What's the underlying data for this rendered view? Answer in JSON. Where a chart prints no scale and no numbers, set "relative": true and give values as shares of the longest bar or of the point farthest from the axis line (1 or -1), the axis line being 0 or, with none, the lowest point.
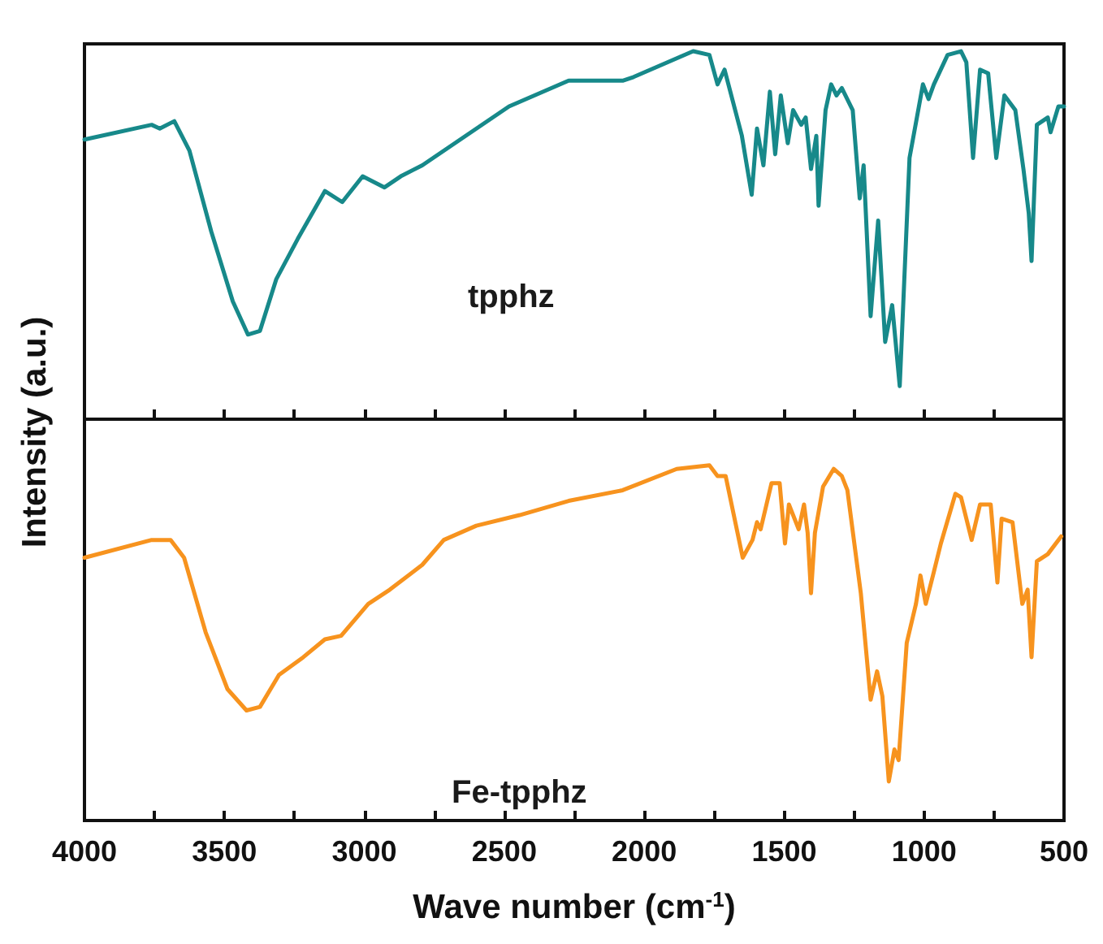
{
  "chart_data": [
    {
      "type": "line",
      "relative": true,
      "xlim": [
        4000,
        500
      ],
      "xticks": [
        4000,
        {
          "value": 3750,
          "label": null
        },
        3500,
        {
          "value": 3250,
          "label": null
        },
        3000,
        {
          "value": 2750,
          "label": null
        },
        2500,
        {
          "value": 2250,
          "label": null
        },
        2000,
        {
          "value": 1750,
          "label": null
        },
        1500,
        {
          "value": 1250,
          "label": null
        },
        1000,
        {
          "value": 750,
          "label": null
        },
        500
      ],
      "tick_labels": false,
      "ylabel": "Intensity (a.u.)",
      "annotations": [
        "tpphz"
      ],
      "grid": false,
      "marker": "none",
      "line_style": "solid",
      "series": [
        {
          "color": "#17898a",
          "x": [
            4000,
            3760,
            3731,
            3679,
            3625,
            3547,
            3470,
            3416,
            3373,
            3315,
            3238,
            3141,
            3079,
            3006,
            2928,
            2870,
            2793,
            2638,
            2483,
            2270,
            2077,
            2038,
            1825,
            1767,
            1738,
            1713,
            1651,
            1616,
            1597,
            1574,
            1551,
            1532,
            1512,
            1487,
            1468,
            1439,
            1423,
            1404,
            1385,
            1377,
            1352,
            1332,
            1313,
            1294,
            1255,
            1230,
            1216,
            1191,
            1164,
            1139,
            1114,
            1087,
            1052,
            1004,
            984,
            965,
            916,
            868,
            849,
            825,
            800,
            771,
            742,
            713,
            674,
            645,
            626,
            616,
            597,
            558,
            548,
            520,
            500
          ],
          "values": [
            0.76,
            0.8,
            0.79,
            0.81,
            0.73,
            0.51,
            0.32,
            0.23,
            0.24,
            0.38,
            0.49,
            0.62,
            0.59,
            0.66,
            0.63,
            0.66,
            0.69,
            0.77,
            0.85,
            0.92,
            0.92,
            0.93,
            1,
            0.99,
            0.91,
            0.95,
            0.77,
            0.61,
            0.79,
            0.69,
            0.89,
            0.72,
            0.88,
            0.75,
            0.84,
            0.8,
            0.82,
            0.68,
            0.77,
            0.58,
            0.84,
            0.91,
            0.88,
            0.9,
            0.84,
            0.6,
            0.69,
            0.28,
            0.54,
            0.21,
            0.31,
            0.09,
            0.71,
            0.91,
            0.87,
            0.91,
            0.99,
            1,
            0.97,
            0.71,
            0.95,
            0.94,
            0.71,
            0.88,
            0.84,
            0.68,
            0.56,
            0.43,
            0.8,
            0.82,
            0.78,
            0.85,
            0.85
          ]
        }
      ]
    },
    {
      "type": "line",
      "relative": true,
      "xlim": [
        4000,
        500
      ],
      "xticks": [
        4000,
        {
          "value": 3750,
          "label": null
        },
        3500,
        {
          "value": 3250,
          "label": null
        },
        3000,
        {
          "value": 2750,
          "label": null
        },
        2500,
        {
          "value": 2250,
          "label": null
        },
        2000,
        {
          "value": 1750,
          "label": null
        },
        1500,
        {
          "value": 1250,
          "label": null
        },
        1000,
        {
          "value": 750,
          "label": null
        },
        500
      ],
      "tick_labels": "x",
      "xlabel": "Wave number (cm$^{-1}$)",
      "annotations": [
        "Fe-tpphz"
      ],
      "grid": false,
      "marker": "none",
      "line_style": "solid",
      "series": [
        {
          "color": "#f7931e",
          "x": [
            4000,
            3760,
            3692,
            3644,
            3567,
            3489,
            3421,
            3373,
            3305,
            3218,
            3141,
            3083,
            2986,
            2909,
            2793,
            2716,
            2600,
            2445,
            2270,
            2077,
            1884,
            1767,
            1738,
            1709,
            1648,
            1613,
            1597,
            1584,
            1545,
            1516,
            1497,
            1483,
            1448,
            1429,
            1416,
            1404,
            1390,
            1361,
            1323,
            1294,
            1274,
            1226,
            1191,
            1168,
            1149,
            1126,
            1106,
            1091,
            1062,
            1029,
            1013,
            994,
            965,
            940,
            888,
            868,
            830,
            800,
            762,
            738,
            723,
            684,
            649,
            630,
            616,
            597,
            558,
            510
          ],
          "values": [
            0.74,
            0.79,
            0.79,
            0.74,
            0.53,
            0.37,
            0.31,
            0.32,
            0.41,
            0.46,
            0.51,
            0.52,
            0.61,
            0.65,
            0.72,
            0.79,
            0.83,
            0.86,
            0.9,
            0.93,
            0.99,
            1,
            0.97,
            0.97,
            0.74,
            0.79,
            0.84,
            0.82,
            0.95,
            0.95,
            0.78,
            0.89,
            0.82,
            0.89,
            0.81,
            0.64,
            0.81,
            0.94,
            0.99,
            0.97,
            0.93,
            0.64,
            0.34,
            0.42,
            0.35,
            0.11,
            0.2,
            0.17,
            0.5,
            0.61,
            0.69,
            0.61,
            0.7,
            0.78,
            0.92,
            0.91,
            0.79,
            0.89,
            0.89,
            0.67,
            0.85,
            0.84,
            0.61,
            0.65,
            0.46,
            0.73,
            0.75,
            0.8
          ]
        }
      ]
    }
  ]
}
